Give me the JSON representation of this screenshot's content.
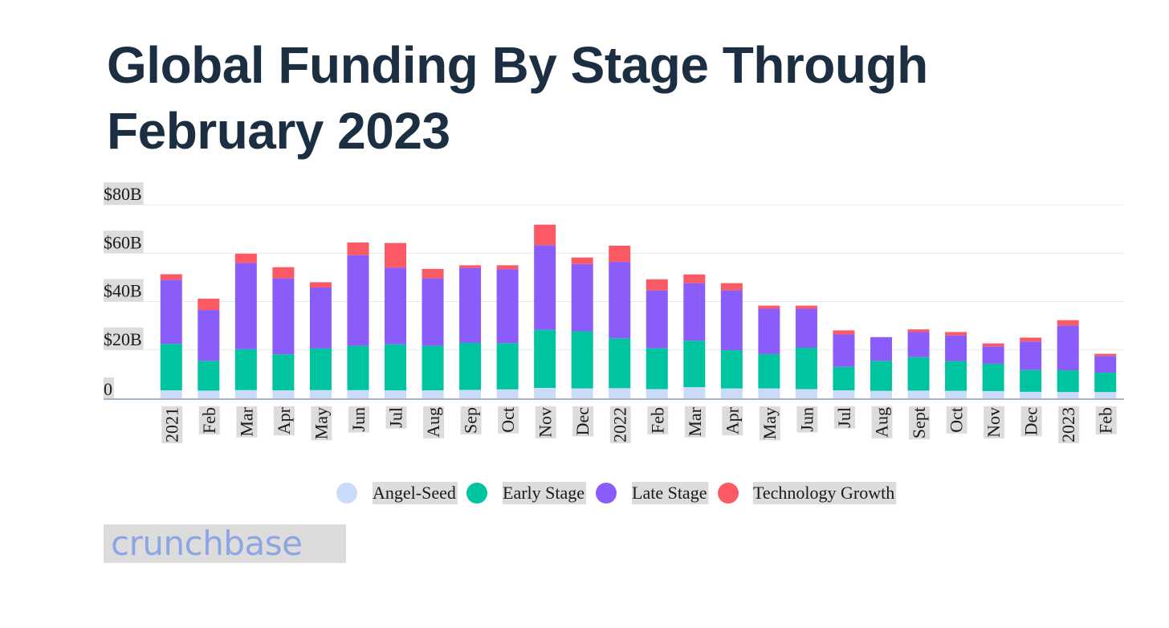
{
  "title_line1": "Global Funding By Stage Through",
  "title_line2": "February 2023",
  "logo_text": "crunchbase",
  "chart_data": {
    "type": "bar",
    "stacked": true,
    "title": "Global Funding By Stage Through February 2023",
    "xlabel": "",
    "ylabel": "",
    "ylim": [
      0,
      80
    ],
    "yticks": [
      0,
      20,
      40,
      60,
      80
    ],
    "ytick_labels": [
      "0",
      "$20B",
      "$40B",
      "$60B",
      "$80B"
    ],
    "categories": [
      "2021",
      "Feb",
      "Mar",
      "Apr",
      "May",
      "Jun",
      "Jul",
      "Aug",
      "Sep",
      "Oct",
      "Nov",
      "Dec",
      "2022",
      "Feb",
      "Mar",
      "Apr",
      "May",
      "Jun",
      "Jul",
      "Aug",
      "Sept",
      "Oct",
      "Nov",
      "Dec",
      "2023",
      "Feb"
    ],
    "grid": true,
    "legend_position": "bottom",
    "series": [
      {
        "name": "Angel-Seed",
        "color": "#c9dbf8",
        "values": [
          3.3,
          3.2,
          3.4,
          3.3,
          3.4,
          3.4,
          3.3,
          3.3,
          3.5,
          3.7,
          4.3,
          4.1,
          4.2,
          3.8,
          4.6,
          4.1,
          4.1,
          3.8,
          3.3,
          3.1,
          3.2,
          3.1,
          3.0,
          2.7,
          2.6,
          2.6
        ]
      },
      {
        "name": "Early Stage",
        "color": "#00c3a0",
        "values": [
          19.2,
          12.3,
          16.9,
          14.9,
          17.2,
          18.3,
          19.0,
          18.4,
          19.4,
          19.1,
          24.0,
          23.6,
          20.6,
          16.9,
          19.2,
          15.8,
          14.2,
          17.1,
          9.7,
          12.4,
          13.8,
          12.3,
          11.3,
          9.0,
          9.0,
          8.0
        ]
      },
      {
        "name": "Late Stage",
        "color": "#8a5dfb",
        "values": [
          26.5,
          21.0,
          35.7,
          31.4,
          25.2,
          37.5,
          31.7,
          27.9,
          31.0,
          30.6,
          35.0,
          27.8,
          31.6,
          23.9,
          23.8,
          24.8,
          18.7,
          16.1,
          13.4,
          9.8,
          10.4,
          10.6,
          7.2,
          11.8,
          18.5,
          6.9
        ]
      },
      {
        "name": "Technology Growth",
        "color": "#fb5a64",
        "values": [
          2.3,
          4.7,
          3.8,
          4.6,
          2.2,
          5.2,
          10.2,
          3.9,
          1.1,
          1.6,
          8.5,
          2.7,
          6.7,
          4.6,
          3.6,
          2.9,
          1.3,
          1.3,
          1.7,
          0.0,
          1.1,
          1.4,
          1.2,
          1.6,
          2.2,
          0.9
        ]
      }
    ]
  }
}
